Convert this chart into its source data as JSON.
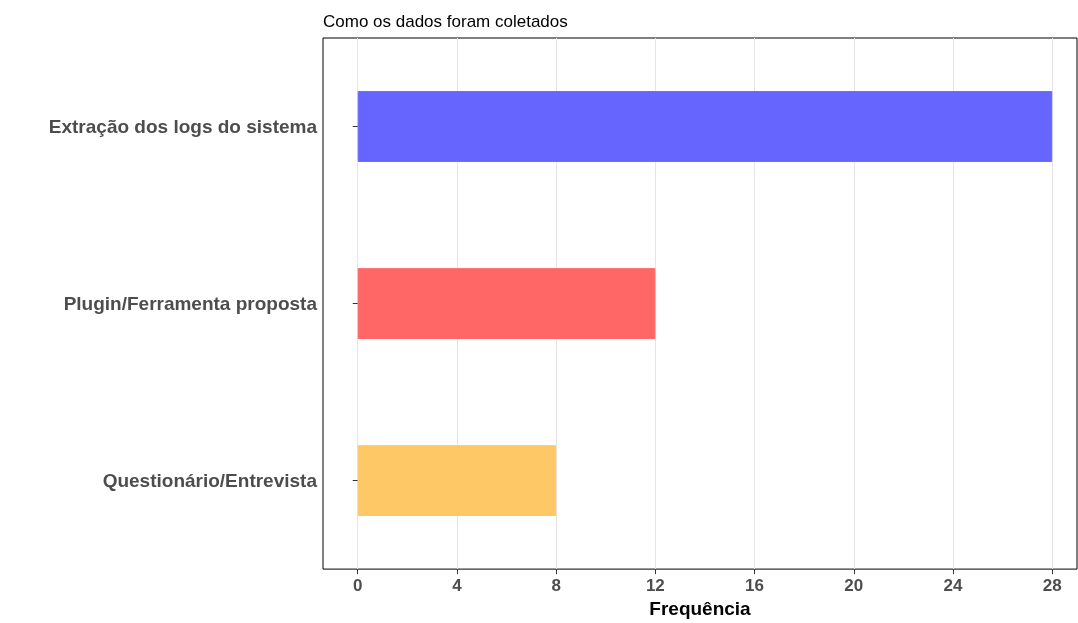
{
  "chart_data": {
    "type": "bar",
    "orientation": "horizontal",
    "title": "Como os dados foram coletados",
    "xlabel": "Frequência",
    "categories": [
      "Extração dos logs do sistema",
      "Plugin/Ferramenta proposta",
      "Questionário/Entrevista"
    ],
    "values": [
      28,
      12,
      8
    ],
    "colors": [
      "#6666ff",
      "#ff6666",
      "#fdc865"
    ],
    "xlim": [
      -1.4,
      29
    ],
    "xticks": [
      0,
      4,
      8,
      12,
      16,
      20,
      24,
      28
    ],
    "grid": "x"
  }
}
